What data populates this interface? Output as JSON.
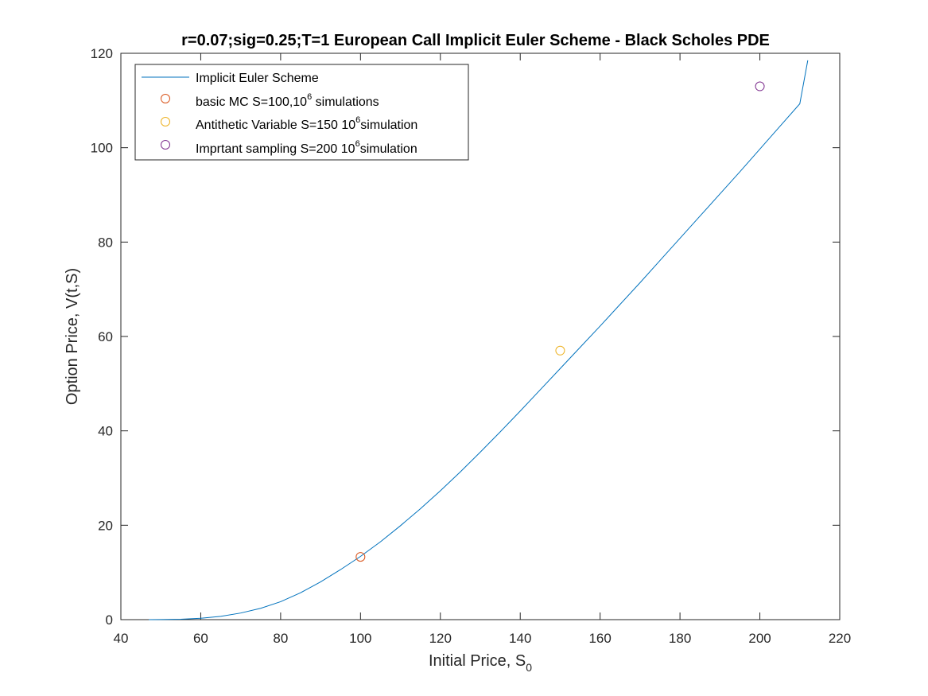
{
  "chart_data": {
    "type": "line",
    "title": "r=0.07;sig=0.25;T=1 European Call Implicit Euler Scheme - Black Scholes PDE",
    "xlabel": "Initial Price, S",
    "xlabel_sub": "0",
    "ylabel": "Option Price, V(t,S)",
    "xlim": [
      40,
      220
    ],
    "ylim": [
      0,
      120
    ],
    "xticks": [
      "40",
      "60",
      "80",
      "100",
      "120",
      "140",
      "160",
      "180",
      "200",
      "220"
    ],
    "yticks": [
      "0",
      "20",
      "40",
      "60",
      "80",
      "100",
      "120"
    ],
    "grid": false,
    "legend_position": "top-left",
    "series": [
      {
        "name": "Implicit Euler Scheme",
        "kind": "line",
        "color": "#0072BD",
        "x": [
          47,
          50,
          55,
          60,
          65,
          70,
          75,
          80,
          85,
          90,
          95,
          100,
          105,
          110,
          115,
          120,
          125,
          130,
          135,
          140,
          145,
          150,
          155,
          160,
          165,
          170,
          175,
          180,
          185,
          190,
          195,
          200,
          205,
          210,
          212
        ],
        "y": [
          0.0,
          0.02,
          0.08,
          0.3,
          0.7,
          1.4,
          2.4,
          3.8,
          5.7,
          8.0,
          10.6,
          13.4,
          16.5,
          19.9,
          23.5,
          27.3,
          31.3,
          35.5,
          39.8,
          44.2,
          48.7,
          53.2,
          57.7,
          62.2,
          66.8,
          71.4,
          76.1,
          80.8,
          85.5,
          90.2,
          94.9,
          99.7,
          104.5,
          109.3,
          118.5
        ]
      },
      {
        "name_parts": [
          "basic MC S=100,10",
          "6",
          " simulations"
        ],
        "kind": "marker",
        "color": "#D95319",
        "x": [
          100
        ],
        "y": [
          13.3
        ]
      },
      {
        "name_parts": [
          "Antithetic Variable S=150 10",
          "6",
          "simulation"
        ],
        "kind": "marker",
        "color": "#EDB120",
        "x": [
          150
        ],
        "y": [
          57.0
        ]
      },
      {
        "name_parts": [
          "Imprtant sampling S=200 10",
          "6",
          "simulation"
        ],
        "kind": "marker",
        "color": "#7E2F8E",
        "x": [
          200
        ],
        "y": [
          113.0
        ]
      }
    ]
  }
}
